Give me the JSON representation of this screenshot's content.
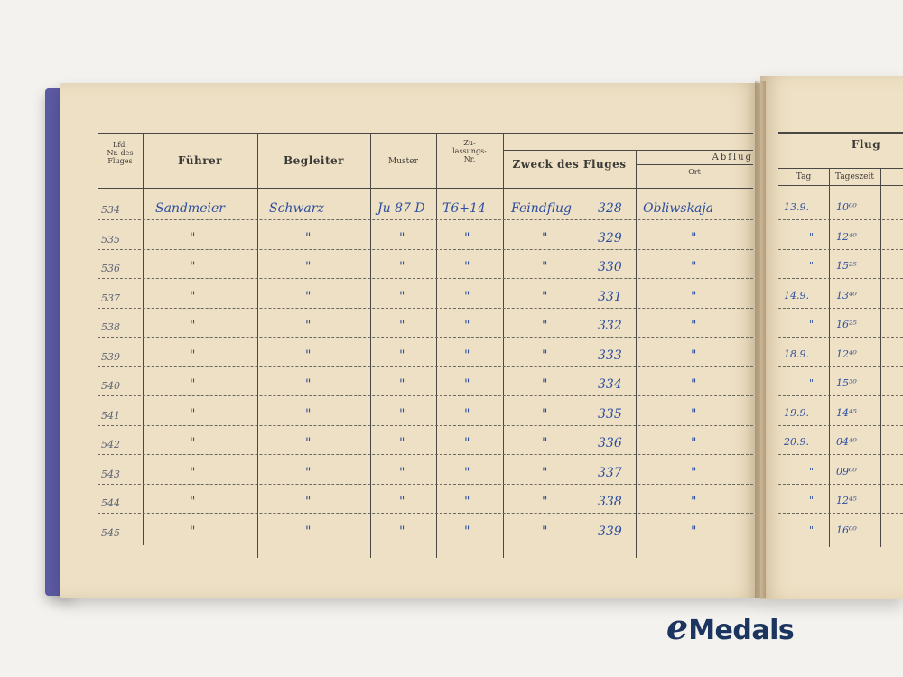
{
  "headers": {
    "lfd": [
      "Lfd.",
      "Nr. des",
      "Fluges"
    ],
    "fuehrer": "Führer",
    "begleiter": "Begleiter",
    "muster": "Muster",
    "zulassung": [
      "Zu-",
      "lassungs-",
      "Nr."
    ],
    "zweck": "Zweck des Fluges",
    "abflug": "Abflug",
    "ort": "Ort",
    "flug": "Flug",
    "tag": "Tag",
    "tageszeit": "Tageszeit"
  },
  "rows": [
    {
      "nr": "534",
      "fuehrer": "Sandmeier",
      "begleiter": "Schwarz",
      "muster": "Ju 87 D",
      "zulassung": "T6+14",
      "zweck": "Feindflug",
      "zweck_nr": "328",
      "ort": "Obliwskaja",
      "tag": "13.9.",
      "zeit": "10⁰⁰"
    },
    {
      "nr": "535",
      "fuehrer": "\"",
      "begleiter": "\"",
      "muster": "\"",
      "zulassung": "\"",
      "zweck": "\"",
      "zweck_nr": "329",
      "ort": "\"",
      "tag": "\"",
      "zeit": "12⁴⁰"
    },
    {
      "nr": "536",
      "fuehrer": "\"",
      "begleiter": "\"",
      "muster": "\"",
      "zulassung": "\"",
      "zweck": "\"",
      "zweck_nr": "330",
      "ort": "\"",
      "tag": "\"",
      "zeit": "15²⁵"
    },
    {
      "nr": "537",
      "fuehrer": "\"",
      "begleiter": "\"",
      "muster": "\"",
      "zulassung": "\"",
      "zweck": "\"",
      "zweck_nr": "331",
      "ort": "\"",
      "tag": "14.9.",
      "zeit": "13⁴⁰"
    },
    {
      "nr": "538",
      "fuehrer": "\"",
      "begleiter": "\"",
      "muster": "\"",
      "zulassung": "\"",
      "zweck": "\"",
      "zweck_nr": "332",
      "ort": "\"",
      "tag": "\"",
      "zeit": "16²⁵"
    },
    {
      "nr": "539",
      "fuehrer": "\"",
      "begleiter": "\"",
      "muster": "\"",
      "zulassung": "\"",
      "zweck": "\"",
      "zweck_nr": "333",
      "ort": "\"",
      "tag": "18.9.",
      "zeit": "12⁴⁰"
    },
    {
      "nr": "540",
      "fuehrer": "\"",
      "begleiter": "\"",
      "muster": "\"",
      "zulassung": "\"",
      "zweck": "\"",
      "zweck_nr": "334",
      "ort": "\"",
      "tag": "\"",
      "zeit": "15³⁰"
    },
    {
      "nr": "541",
      "fuehrer": "\"",
      "begleiter": "\"",
      "muster": "\"",
      "zulassung": "\"",
      "zweck": "\"",
      "zweck_nr": "335",
      "ort": "\"",
      "tag": "19.9.",
      "zeit": "14⁴⁵"
    },
    {
      "nr": "542",
      "fuehrer": "\"",
      "begleiter": "\"",
      "muster": "\"",
      "zulassung": "\"",
      "zweck": "\"",
      "zweck_nr": "336",
      "ort": "\"",
      "tag": "20.9.",
      "zeit": "04⁴⁰"
    },
    {
      "nr": "543",
      "fuehrer": "\"",
      "begleiter": "\"",
      "muster": "\"",
      "zulassung": "\"",
      "zweck": "\"",
      "zweck_nr": "337",
      "ort": "\"",
      "tag": "\"",
      "zeit": "09⁰⁰"
    },
    {
      "nr": "544",
      "fuehrer": "\"",
      "begleiter": "\"",
      "muster": "\"",
      "zulassung": "\"",
      "zweck": "\"",
      "zweck_nr": "338",
      "ort": "\"",
      "tag": "\"",
      "zeit": "12⁴⁵"
    },
    {
      "nr": "545",
      "fuehrer": "\"",
      "begleiter": "\"",
      "muster": "\"",
      "zulassung": "\"",
      "zweck": "\"",
      "zweck_nr": "339",
      "ort": "\"",
      "tag": "\"",
      "zeit": "16⁰⁰"
    }
  ],
  "watermark": {
    "e": "e",
    "text": "Medals"
  }
}
